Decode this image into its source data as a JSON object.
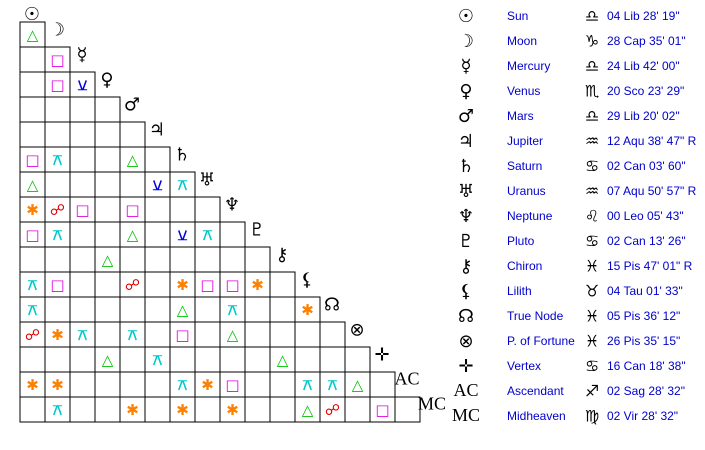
{
  "planets": [
    {
      "glyph": "☉",
      "name": "Sun",
      "sign": "♎",
      "position": "04 Lib 28' 19\""
    },
    {
      "glyph": "☽",
      "name": "Moon",
      "sign": "♑",
      "position": "28 Cap 35' 01\""
    },
    {
      "glyph": "☿",
      "name": "Mercury",
      "sign": "♎",
      "position": "24 Lib 42' 00\""
    },
    {
      "glyph": "♀",
      "name": "Venus",
      "sign": "♏",
      "position": "20 Sco 23' 29\""
    },
    {
      "glyph": "♂",
      "name": "Mars",
      "sign": "♎",
      "position": "29 Lib 20' 02\""
    },
    {
      "glyph": "♃",
      "name": "Jupiter",
      "sign": "♒",
      "position": "12 Aqu 38' 47\" R"
    },
    {
      "glyph": "♄",
      "name": "Saturn",
      "sign": "♋",
      "position": "02 Can 03' 60\""
    },
    {
      "glyph": "♅",
      "name": "Uranus",
      "sign": "♒",
      "position": "07 Aqu 50' 57\" R"
    },
    {
      "glyph": "♆",
      "name": "Neptune",
      "sign": "♌",
      "position": "00 Leo 05' 43\""
    },
    {
      "glyph": "♇",
      "name": "Pluto",
      "sign": "♋",
      "position": "02 Can 13' 26\""
    },
    {
      "glyph": "⚷",
      "name": "Chiron",
      "sign": "♓",
      "position": "15 Pis 47' 01\" R"
    },
    {
      "glyph": "⚸",
      "name": "Lilith",
      "sign": "♉",
      "position": "04 Tau 01' 33\""
    },
    {
      "glyph": "☊",
      "name": "True Node",
      "sign": "♓",
      "position": "05 Pis 36' 12\""
    },
    {
      "glyph": "⊗",
      "name": "P. of Fortune",
      "sign": "♓",
      "position": "26 Pis 35' 15\""
    },
    {
      "glyph": "✛",
      "name": "Vertex",
      "sign": "♋",
      "position": "16 Can 18' 38\""
    },
    {
      "glyph": "AC",
      "name": "Ascendant",
      "sign": "♐",
      "position": "02 Sag 28' 32\""
    },
    {
      "glyph": "MC",
      "name": "Midheaven",
      "sign": "♍",
      "position": "02 Vir 28' 32\""
    }
  ],
  "grid": [
    [
      "△"
    ],
    [
      null,
      "□"
    ],
    [
      null,
      "□",
      "⚺"
    ],
    [
      null,
      null,
      null,
      null
    ],
    [
      null,
      null,
      null,
      null,
      null
    ],
    [
      "□",
      "⚻",
      null,
      null,
      "△",
      null
    ],
    [
      "△",
      null,
      null,
      null,
      null,
      "⚺",
      "⚻"
    ],
    [
      "✱",
      "☍",
      "□",
      null,
      "□",
      null,
      null,
      null
    ],
    [
      "□",
      "⚻",
      null,
      null,
      "△",
      null,
      "⚺",
      "⚻",
      null
    ],
    [
      null,
      null,
      null,
      "△",
      null,
      null,
      null,
      null,
      null,
      null
    ],
    [
      "⚻",
      "□",
      null,
      null,
      "☍",
      null,
      "✱",
      "□",
      "□",
      "✱",
      null
    ],
    [
      "⚻",
      null,
      null,
      null,
      null,
      null,
      "△",
      null,
      "⚻",
      null,
      null,
      "✱"
    ],
    [
      "☍",
      "✱",
      "⚻",
      null,
      "⚻",
      null,
      "□",
      null,
      "△",
      null,
      null,
      null,
      null
    ],
    [
      null,
      null,
      null,
      "△",
      null,
      "⚻",
      null,
      null,
      null,
      null,
      "△",
      null,
      null,
      null
    ],
    [
      "✱",
      "✱",
      null,
      null,
      null,
      null,
      "⚻",
      "✱",
      "□",
      null,
      null,
      "⚻",
      "⚻",
      "△",
      null
    ],
    [
      null,
      "⚻",
      null,
      null,
      "✱",
      null,
      "✱",
      null,
      "✱",
      null,
      null,
      "△",
      "☍",
      null,
      "□",
      null
    ]
  ],
  "aspect_colors": {
    "△": "#00c000",
    "□": "#e000e0",
    "☍": "#e00000",
    "✱": "#ff8000",
    "⚻": "#00c8c8",
    "⚺": "#0000e0"
  }
}
